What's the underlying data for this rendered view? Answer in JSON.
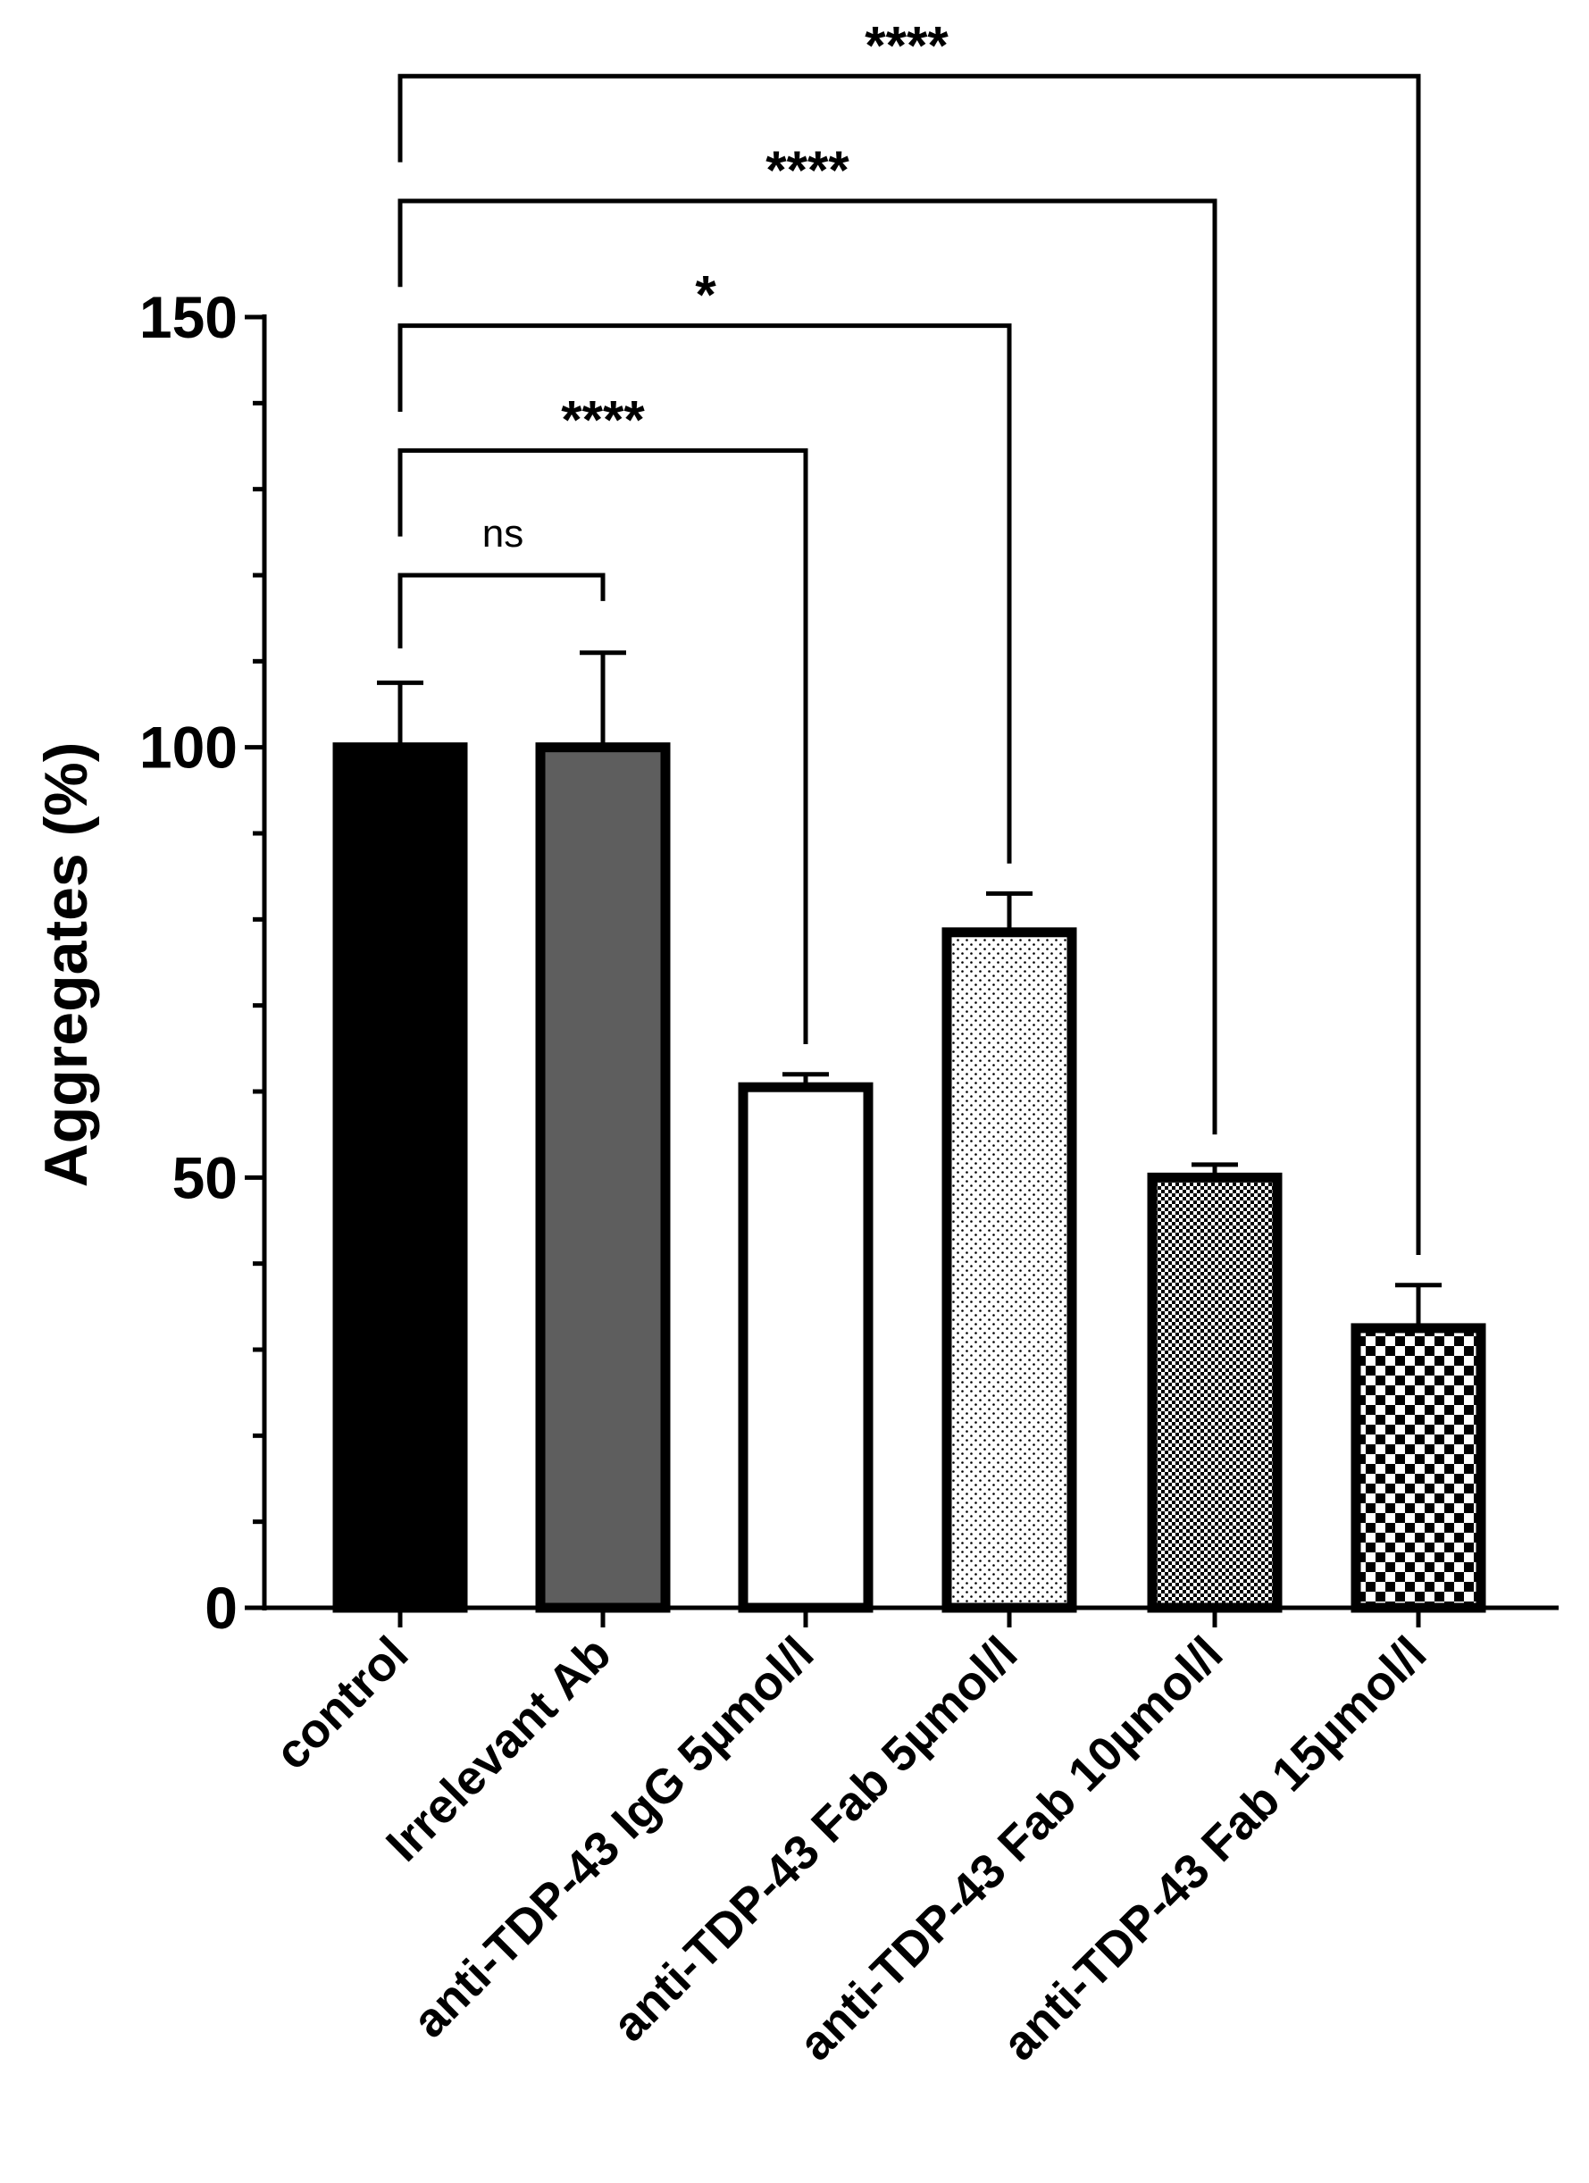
{
  "chart_data": {
    "type": "bar",
    "title": "",
    "xlabel": "",
    "ylabel": "Aggregates (%)",
    "ylim": [
      0,
      150
    ],
    "yticks_major": [
      0,
      50,
      100,
      150
    ],
    "yticks_minor_step": 10,
    "grid": false,
    "categories": [
      "control",
      "Irrelevant Ab",
      "anti-TDP-43 IgG 5µmol/l",
      "anti-TDP-43 Fab 5µmol/l",
      "anti-TDP-43 Fab 10µmol/l",
      "anti-TDP-43 Fab 15µmol/l"
    ],
    "values": [
      100,
      100,
      60.5,
      78.5,
      50,
      32.5
    ],
    "errors": [
      7.5,
      11,
      1.5,
      4.5,
      1.5,
      5
    ],
    "fills": [
      "solid-black",
      "solid-gray",
      "white",
      "fine-dots",
      "dense-checker",
      "checkerboard"
    ],
    "colors": {
      "black": "#000000",
      "gray": "#5e5e5e",
      "white": "#ffffff"
    },
    "comparisons": [
      {
        "from": 0,
        "to": 1,
        "label": "ns"
      },
      {
        "from": 0,
        "to": 2,
        "label": "****"
      },
      {
        "from": 0,
        "to": 3,
        "label": "*"
      },
      {
        "from": 0,
        "to": 4,
        "label": "****"
      },
      {
        "from": 0,
        "to": 5,
        "label": "****"
      }
    ]
  }
}
